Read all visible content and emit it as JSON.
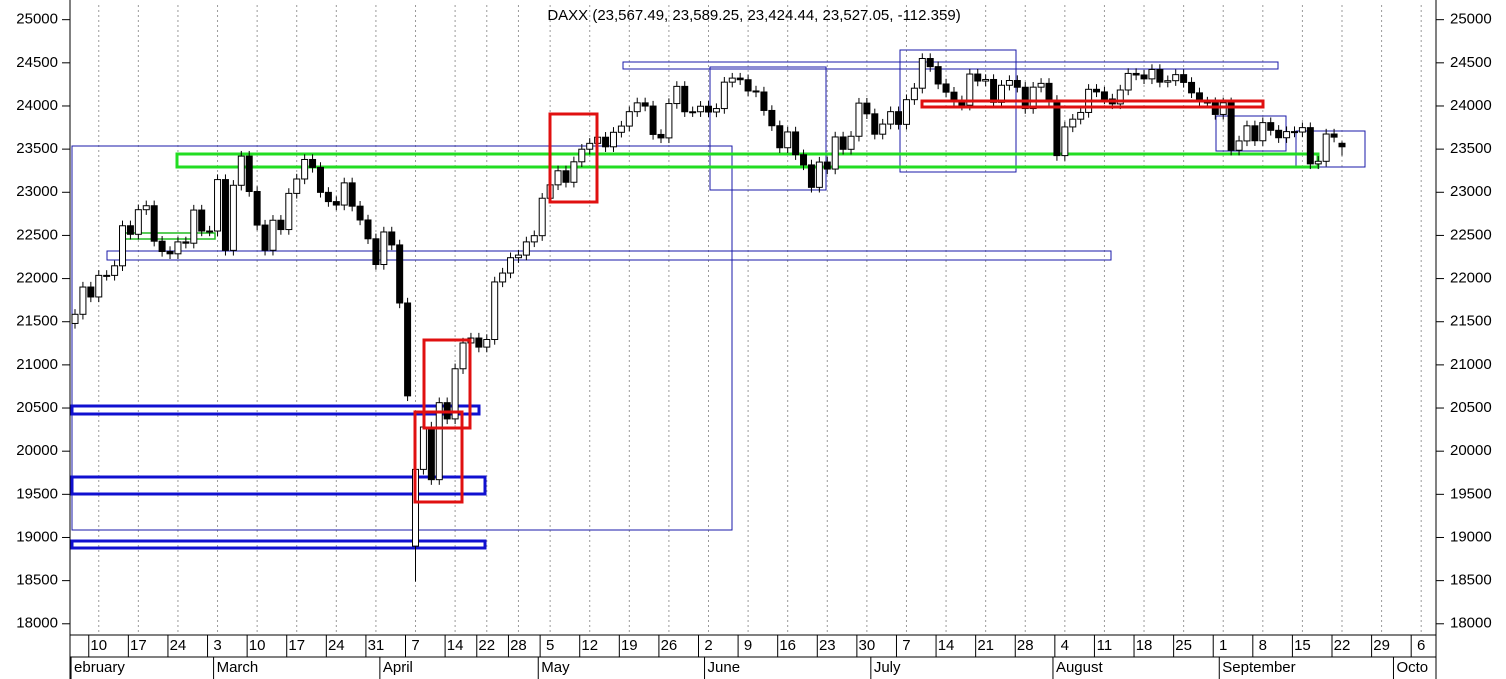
{
  "chart_data": {
    "type": "candlestick",
    "title": "DAXX (23,567.49, 23,589.25, 23,424.44, 23,527.05, -112.359)",
    "x": [
      "02-05",
      "02-06",
      "02-07",
      "02-10",
      "02-11",
      "02-12",
      "02-13",
      "02-14",
      "02-17",
      "02-18",
      "02-19",
      "02-20",
      "02-21",
      "02-24",
      "02-25",
      "02-26",
      "02-27",
      "02-28",
      "03-03",
      "03-04",
      "03-05",
      "03-06",
      "03-07",
      "03-10",
      "03-11",
      "03-12",
      "03-13",
      "03-14",
      "03-17",
      "03-18",
      "03-19",
      "03-20",
      "03-21",
      "03-24",
      "03-25",
      "03-26",
      "03-27",
      "03-28",
      "03-31",
      "04-01",
      "04-02",
      "04-03",
      "04-04",
      "04-07",
      "04-08",
      "04-09",
      "04-10",
      "04-11",
      "04-14",
      "04-15",
      "04-16",
      "04-17",
      "04-22",
      "04-23",
      "04-24",
      "04-25",
      "04-28",
      "04-29",
      "04-30",
      "05-02",
      "05-05",
      "05-06",
      "05-07",
      "05-08",
      "05-09",
      "05-12",
      "05-13",
      "05-14",
      "05-15",
      "05-16",
      "05-19",
      "05-20",
      "05-21",
      "05-22",
      "05-23",
      "05-26",
      "05-27",
      "05-28",
      "05-29",
      "05-30",
      "06-02",
      "06-03",
      "06-04",
      "06-05",
      "06-06",
      "06-09",
      "06-10",
      "06-11",
      "06-12",
      "06-13",
      "06-16",
      "06-17",
      "06-18",
      "06-19",
      "06-20",
      "06-23",
      "06-24",
      "06-25",
      "06-26",
      "06-27",
      "06-30",
      "07-01",
      "07-02",
      "07-03",
      "07-04",
      "07-07",
      "07-08",
      "07-09",
      "07-10",
      "07-11",
      "07-14",
      "07-15",
      "07-16",
      "07-17",
      "07-18",
      "07-21",
      "07-22",
      "07-23",
      "07-24",
      "07-25",
      "07-28",
      "07-29",
      "07-30",
      "07-31",
      "08-01",
      "08-04",
      "08-05",
      "08-06",
      "08-07",
      "08-08",
      "08-11",
      "08-12",
      "08-13",
      "08-14",
      "08-15",
      "08-18",
      "08-19",
      "08-20",
      "08-21",
      "08-22",
      "08-25",
      "08-26",
      "08-27",
      "08-28",
      "08-29",
      "09-01",
      "09-02",
      "09-03",
      "09-04",
      "09-05",
      "09-08",
      "09-09",
      "09-10",
      "09-11",
      "09-12",
      "09-15",
      "09-16",
      "09-17",
      "09-18",
      "09-19",
      "09-22"
    ],
    "open": [
      21480,
      21586,
      21902,
      21787,
      22037,
      22037,
      22148,
      22612,
      22513,
      22798,
      22844,
      22433,
      22314,
      22287,
      22425,
      22410,
      22794,
      22551,
      22551,
      23147,
      22327,
      23081,
      23419,
      23009,
      22620,
      22328,
      22676,
      22568,
      22987,
      23154,
      23380,
      23288,
      22999,
      22892,
      22852,
      23109,
      22839,
      22679,
      22461,
      22163,
      22540,
      22390,
      21717,
      18900,
      19789,
      20280,
      19670,
      20562,
      20374,
      20955,
      21254,
      21311,
      21206,
      21294,
      21961,
      22064,
      22242,
      22272,
      22425,
      22497,
      22931,
      23086,
      23249,
      23116,
      23353,
      23499,
      23567,
      23638,
      23527,
      23695,
      23767,
      23934,
      24036,
      23999,
      23670,
      23630,
      24028,
      24227,
      23933,
      23933,
      23997,
      23930,
      23970,
      24276,
      24323,
      24304,
      24174,
      24162,
      23948,
      23771,
      23516,
      23699,
      23435,
      23317,
      23057,
      23350,
      23269,
      23641,
      23498,
      23649,
      24033,
      23909,
      23673,
      23790,
      23934,
      23787,
      24073,
      24206,
      24550,
      24456,
      24255,
      24160,
      24060,
      24009,
      24370,
      24289,
      24307,
      24042,
      24240,
      24295,
      24217,
      23970,
      24218,
      24262,
      24065,
      23425,
      23757,
      23847,
      23925,
      24193,
      24163,
      24081,
      24024,
      24185,
      24377,
      24359,
      24314,
      24423,
      24276,
      24293,
      24363,
      24273,
      24152,
      24046,
      24039,
      23902,
      24037,
      23487,
      23595,
      23770,
      23597,
      23807,
      23718,
      23632,
      23703,
      23698,
      23749,
      23329,
      23359,
      23675,
      23567.49
    ],
    "high": [
      21646,
      21962,
      21962,
      22097,
      22097,
      22208,
      22672,
      22672,
      22858,
      22904,
      22904,
      22493,
      22374,
      22485,
      22485,
      22854,
      22854,
      22611,
      23207,
      23207,
      23141,
      23479,
      23479,
      23069,
      22680,
      22736,
      22736,
      23047,
      23214,
      23440,
      23440,
      23348,
      23059,
      22952,
      23169,
      23169,
      22899,
      22739,
      22521,
      22600,
      22600,
      22450,
      21777,
      19900,
      20340,
      20340,
      20622,
      20622,
      21015,
      21314,
      21371,
      21371,
      21354,
      22021,
      22124,
      22302,
      22332,
      22485,
      22557,
      22991,
      23146,
      23309,
      23309,
      23413,
      23559,
      23627,
      23698,
      23698,
      23755,
      23827,
      23994,
      24096,
      24096,
      24059,
      23730,
      24088,
      24287,
      24287,
      23993,
      24057,
      24057,
      24030,
      24336,
      24383,
      24383,
      24364,
      24234,
      24222,
      24008,
      23831,
      23759,
      23759,
      23495,
      23377,
      23410,
      23410,
      23701,
      23701,
      23709,
      24093,
      24093,
      23969,
      23850,
      23994,
      23994,
      24133,
      24266,
      24610,
      24610,
      24516,
      24315,
      24220,
      24120,
      24430,
      24430,
      24367,
      24367,
      24300,
      24355,
      24355,
      24277,
      24278,
      24322,
      24322,
      24125,
      23817,
      23907,
      23985,
      24253,
      24253,
      24223,
      24141,
      24245,
      24437,
      24437,
      24419,
      24483,
      24483,
      24353,
      24423,
      24423,
      24333,
      24212,
      24106,
      24099,
      24097,
      24097,
      23655,
      23830,
      23830,
      23867,
      23867,
      23778,
      23763,
      23763,
      23809,
      23809,
      23419,
      23735,
      23735,
      23589.25
    ],
    "low": [
      21420,
      21526,
      21727,
      21727,
      21977,
      21977,
      22088,
      22453,
      22453,
      22738,
      22373,
      22254,
      22227,
      22227,
      22350,
      22350,
      22491,
      22491,
      22491,
      22267,
      22267,
      23021,
      22949,
      22560,
      22268,
      22268,
      22508,
      22508,
      22927,
      23094,
      23228,
      22939,
      22832,
      22792,
      22792,
      22779,
      22619,
      22401,
      22103,
      22103,
      22330,
      21657,
      20581,
      18489,
      19729,
      19610,
      19610,
      20314,
      20314,
      20895,
      21194,
      21146,
      21146,
      21234,
      21901,
      22004,
      22182,
      22212,
      22365,
      22437,
      22871,
      23026,
      23056,
      23056,
      23293,
      23439,
      23507,
      23467,
      23467,
      23635,
      23707,
      23874,
      23939,
      23610,
      23570,
      23570,
      23968,
      23873,
      23873,
      23873,
      23870,
      23870,
      23910,
      24216,
      24244,
      24114,
      24102,
      23888,
      23711,
      23456,
      23456,
      23375,
      23257,
      22997,
      22997,
      23209,
      23209,
      23438,
      23438,
      23589,
      23849,
      23613,
      23613,
      23730,
      23727,
      23727,
      24013,
      24146,
      24396,
      24195,
      24100,
      24000,
      23949,
      23949,
      24229,
      24229,
      23982,
      23982,
      24180,
      24157,
      23910,
      23910,
      24158,
      24005,
      23365,
      23365,
      23697,
      23787,
      23865,
      24103,
      24021,
      23964,
      23964,
      24125,
      24299,
      24254,
      24254,
      24216,
      24216,
      24233,
      24213,
      24092,
      23986,
      23979,
      23842,
      23842,
      23427,
      23427,
      23535,
      23537,
      23537,
      23658,
      23572,
      23572,
      23638,
      23638,
      23269,
      23269,
      23299,
      23579,
      23424.44
    ],
    "close": [
      21586,
      21902,
      21787,
      22037,
      22037,
      22148,
      22612,
      22513,
      22798,
      22844,
      22433,
      22314,
      22287,
      22425,
      22410,
      22794,
      22551,
      22551,
      23147,
      22327,
      23081,
      23419,
      23009,
      22620,
      22328,
      22676,
      22568,
      22987,
      23154,
      23380,
      23288,
      22999,
      22892,
      22852,
      23109,
      22839,
      22679,
      22461,
      22163,
      22540,
      22390,
      21717,
      20641,
      19789,
      20280,
      19670,
      20562,
      20374,
      20955,
      21254,
      21311,
      21206,
      21294,
      21961,
      22064,
      22242,
      22272,
      22425,
      22497,
      22931,
      23086,
      23249,
      23116,
      23353,
      23499,
      23567,
      23638,
      23527,
      23695,
      23767,
      23934,
      24036,
      23999,
      23670,
      23630,
      24028,
      24227,
      23933,
      23933,
      23997,
      23930,
      23970,
      24276,
      24323,
      24304,
      24174,
      24162,
      23948,
      23771,
      23516,
      23699,
      23435,
      23317,
      23057,
      23350,
      23269,
      23641,
      23498,
      23649,
      24033,
      23909,
      23673,
      23790,
      23934,
      23787,
      24073,
      24206,
      24550,
      24456,
      24255,
      24160,
      24060,
      24009,
      24370,
      24289,
      24307,
      24042,
      24240,
      24295,
      24217,
      23970,
      24218,
      24262,
      24065,
      23425,
      23757,
      23847,
      23925,
      24193,
      24163,
      24081,
      24024,
      24185,
      24377,
      24359,
      24314,
      24423,
      24276,
      24293,
      24363,
      24273,
      24152,
      24046,
      24039,
      23902,
      24037,
      23487,
      23595,
      23770,
      23597,
      23807,
      23718,
      23632,
      23703,
      23698,
      23749,
      23329,
      23359,
      23675,
      23639,
      23527.05
    ],
    "up_color": "#ffffff",
    "down_color": "#000000",
    "ylim": [
      17870,
      25170
    ],
    "yticks": [
      18000,
      18500,
      19000,
      19500,
      20000,
      20500,
      21000,
      21500,
      22000,
      22500,
      23000,
      23500,
      24000,
      24500,
      25000
    ],
    "xticks": [
      {
        "value": "02-10",
        "label": "10"
      },
      {
        "value": "02-17",
        "label": "17"
      },
      {
        "value": "02-24",
        "label": "24"
      },
      {
        "value": "03-03",
        "label": "3"
      },
      {
        "value": "03-10",
        "label": "10"
      },
      {
        "value": "03-17",
        "label": "17"
      },
      {
        "value": "03-24",
        "label": "24"
      },
      {
        "value": "03-31",
        "label": "31"
      },
      {
        "value": "04-07",
        "label": "7"
      },
      {
        "value": "04-14",
        "label": "14"
      },
      {
        "value": "04-22",
        "label": "22"
      },
      {
        "value": "04-28",
        "label": "28"
      },
      {
        "value": "05-05",
        "label": "5"
      },
      {
        "value": "05-12",
        "label": "12"
      },
      {
        "value": "05-19",
        "label": "19"
      },
      {
        "value": "05-26",
        "label": "26"
      },
      {
        "value": "06-02",
        "label": "2"
      },
      {
        "value": "06-09",
        "label": "9"
      },
      {
        "value": "06-16",
        "label": "16"
      },
      {
        "value": "06-23",
        "label": "23"
      },
      {
        "value": "06-30",
        "label": "30"
      },
      {
        "value": "07-07",
        "label": "7"
      },
      {
        "value": "07-14",
        "label": "14"
      },
      {
        "value": "07-21",
        "label": "21"
      },
      {
        "value": "07-28",
        "label": "28"
      },
      {
        "value": "08-04",
        "label": "4"
      },
      {
        "value": "08-11",
        "label": "11"
      },
      {
        "value": "08-18",
        "label": "18"
      },
      {
        "value": "08-25",
        "label": "25"
      },
      {
        "value": "09-01",
        "label": "1"
      },
      {
        "value": "09-08",
        "label": "8"
      },
      {
        "value": "09-15",
        "label": "15"
      },
      {
        "value": "09-22",
        "label": "22"
      },
      {
        "value": "09-29",
        "label": "29"
      },
      {
        "value": "10-06",
        "label": "6"
      }
    ],
    "month_ticks": [
      {
        "value": "02-05",
        "label": "ebruary"
      },
      {
        "value": "03-03",
        "label": "March"
      },
      {
        "value": "04-01",
        "label": "April"
      },
      {
        "value": "05-02",
        "label": "May"
      },
      {
        "value": "06-02",
        "label": "June"
      },
      {
        "value": "07-01",
        "label": "July"
      },
      {
        "value": "08-01",
        "label": "August"
      },
      {
        "value": "09-01",
        "label": "September"
      },
      {
        "value": "10-01",
        "label": "Octo"
      }
    ],
    "grid": true
  }
}
